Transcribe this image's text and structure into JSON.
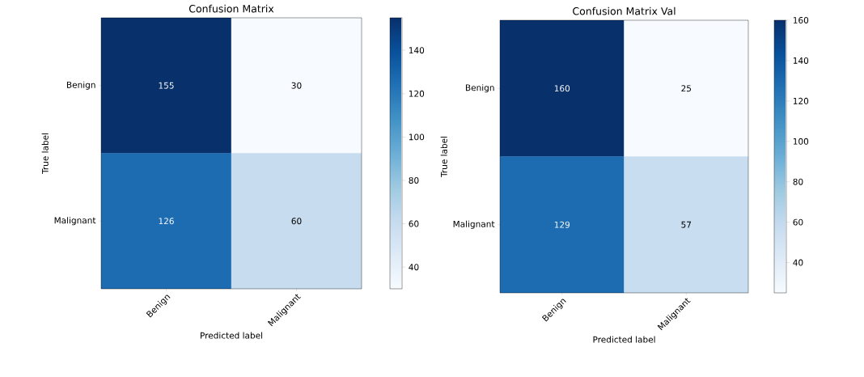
{
  "chart_data": [
    {
      "type": "heatmap",
      "title": "Confusion Matrix",
      "xlabel": "Predicted label",
      "ylabel": "True label",
      "categories": [
        "Benign",
        "Malignant"
      ],
      "y_categories": [
        "Benign",
        "Malignant"
      ],
      "cells": [
        [
          155,
          30
        ],
        [
          126,
          60
        ]
      ],
      "data_labels": true,
      "clim": [
        30,
        155
      ],
      "cticks": [
        40,
        60,
        80,
        100,
        120,
        140
      ]
    },
    {
      "type": "heatmap",
      "title": "Confusion Matrix Val",
      "xlabel": "Predicted label",
      "ylabel": "True label",
      "categories": [
        "Benign",
        "Malignant"
      ],
      "y_categories": [
        "Benign",
        "Malignant"
      ],
      "cells": [
        [
          160,
          25
        ],
        [
          129,
          57
        ]
      ],
      "data_labels": true,
      "clim": [
        25,
        160
      ],
      "cticks": [
        40,
        60,
        80,
        100,
        120,
        140,
        160
      ]
    }
  ]
}
